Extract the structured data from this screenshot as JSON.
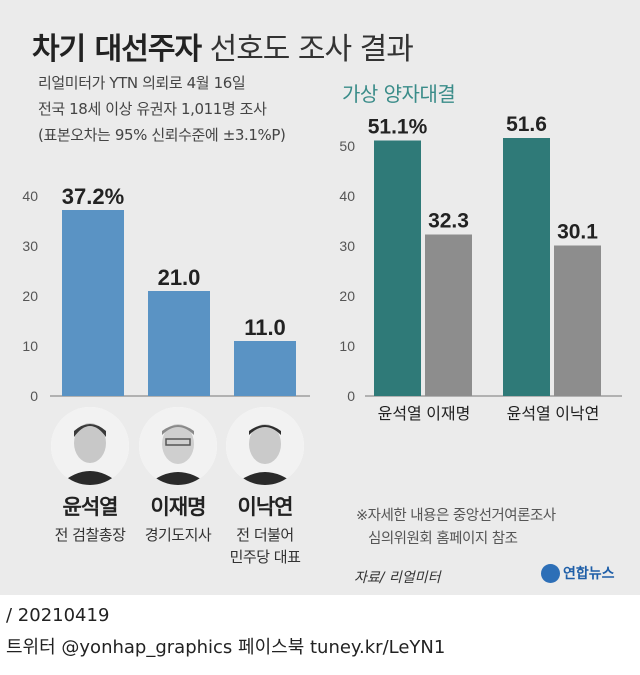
{
  "header": {
    "title_bold": "차기 대선주자",
    "title_light": "선호도 조사 결과"
  },
  "notes": [
    "리얼미터가 YTN 의뢰로 4월 16일",
    "전국 18세 이상 유권자 1,011명 조사",
    "(표본오차는 95% 신뢰수준에 ±3.1%P)"
  ],
  "matchup_title": "가상 양자대결",
  "candidates": [
    {
      "name": "윤석열",
      "role_lines": [
        "전 검찰총장"
      ]
    },
    {
      "name": "이재명",
      "role_lines": [
        "경기도지사"
      ]
    },
    {
      "name": "이낙연",
      "role_lines": [
        "전 더불어",
        "민주당 대표"
      ]
    }
  ],
  "chart_data": [
    {
      "type": "bar",
      "categories": [
        "윤석열",
        "이재명",
        "이낙연"
      ],
      "values": [
        37.2,
        21.0,
        11.0
      ],
      "value_labels": [
        "37.2%",
        "21.0",
        "11.0"
      ],
      "ylim": [
        0,
        40
      ],
      "yticks": [
        0,
        10,
        20,
        30,
        40
      ],
      "ytick_labels": [
        "0",
        "10",
        "20",
        "30",
        "40"
      ],
      "color": "#5a93c4",
      "grid": false
    },
    {
      "type": "bar",
      "title": "가상 양자대결",
      "groups": [
        {
          "label": "윤석열 이재명",
          "bars": [
            {
              "candidate": "윤석열",
              "value": 51.1,
              "label": "51.1%",
              "color": "#2f7a78"
            },
            {
              "candidate": "이재명",
              "value": 32.3,
              "label": "32.3",
              "color": "#8d8d8d"
            }
          ]
        },
        {
          "label": "윤석열 이낙연",
          "bars": [
            {
              "candidate": "윤석열",
              "value": 51.6,
              "label": "51.6",
              "color": "#2f7a78"
            },
            {
              "candidate": "이낙연",
              "value": 30.1,
              "label": "30.1",
              "color": "#8d8d8d"
            }
          ]
        }
      ],
      "ylim": [
        0,
        55
      ],
      "yticks": [
        0,
        10,
        20,
        30,
        40,
        50
      ],
      "ytick_labels": [
        "0",
        "10",
        "20",
        "30",
        "40",
        "50"
      ],
      "grid": false
    }
  ],
  "footnote_lines": [
    "※자세한 내용은 중앙선거여론조사",
    "심의위원회 홈페이지 참조"
  ],
  "source": "자료/ 리얼미터",
  "logo_text": "연합뉴스",
  "date_line": "/ 20210419",
  "social_line": "트위터 @yonhap_graphics  페이스북 tuney.kr/LeYN1"
}
